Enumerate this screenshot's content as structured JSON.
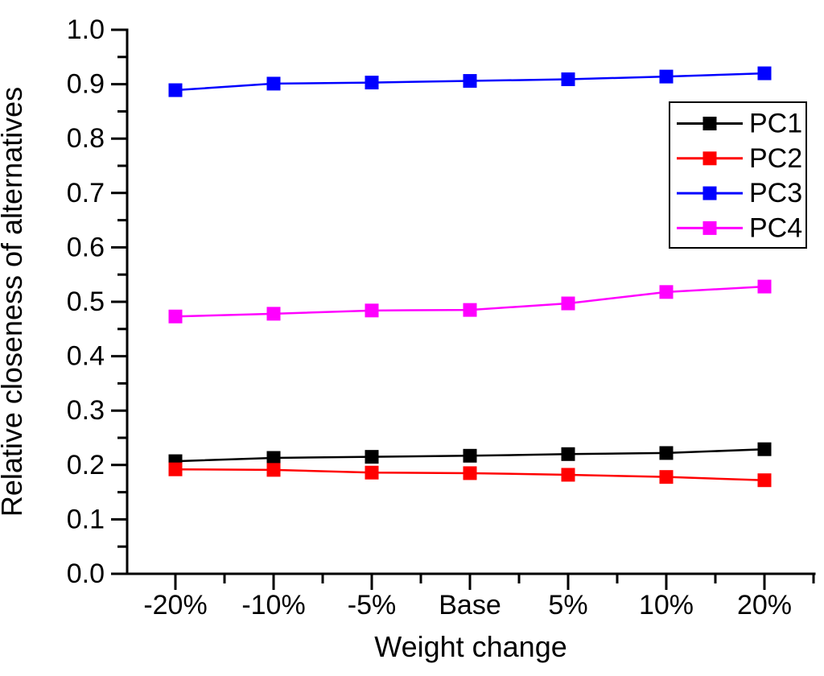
{
  "figure": {
    "background": "#ffffff"
  },
  "chart_data": {
    "type": "line",
    "title": "",
    "xlabel": "Weight change",
    "ylabel": "Relative closeness of alternatives",
    "categories": [
      "-20%",
      "-10%",
      "-5%",
      "Base",
      "5%",
      "10%",
      "20%"
    ],
    "series": [
      {
        "name": "PC1",
        "color": "#000000",
        "marker": "square",
        "values": [
          0.207,
          0.213,
          0.215,
          0.217,
          0.22,
          0.222,
          0.229
        ]
      },
      {
        "name": "PC2",
        "color": "#ff0000",
        "marker": "square",
        "values": [
          0.192,
          0.191,
          0.186,
          0.185,
          0.182,
          0.178,
          0.172
        ]
      },
      {
        "name": "PC3",
        "color": "#0000ff",
        "marker": "square",
        "values": [
          0.889,
          0.901,
          0.903,
          0.906,
          0.909,
          0.914,
          0.92
        ]
      },
      {
        "name": "PC4",
        "color": "#ff00ff",
        "marker": "square",
        "values": [
          0.473,
          0.478,
          0.484,
          0.485,
          0.497,
          0.518,
          0.528
        ]
      }
    ],
    "ylim": [
      0.0,
      1.0
    ],
    "y_tick_step": 0.1,
    "y_minor_tick_step": 0.05,
    "y_tick_labels": [
      "0.0",
      "0.1",
      "0.2",
      "0.3",
      "0.4",
      "0.5",
      "0.6",
      "0.7",
      "0.8",
      "0.9",
      "1.0"
    ],
    "grid": false,
    "legend_position": "inside-upper-right",
    "legend_entries": [
      "PC1",
      "PC2",
      "PC3",
      "PC4"
    ],
    "axis_color": "#000000",
    "plot_background": "#ffffff"
  }
}
